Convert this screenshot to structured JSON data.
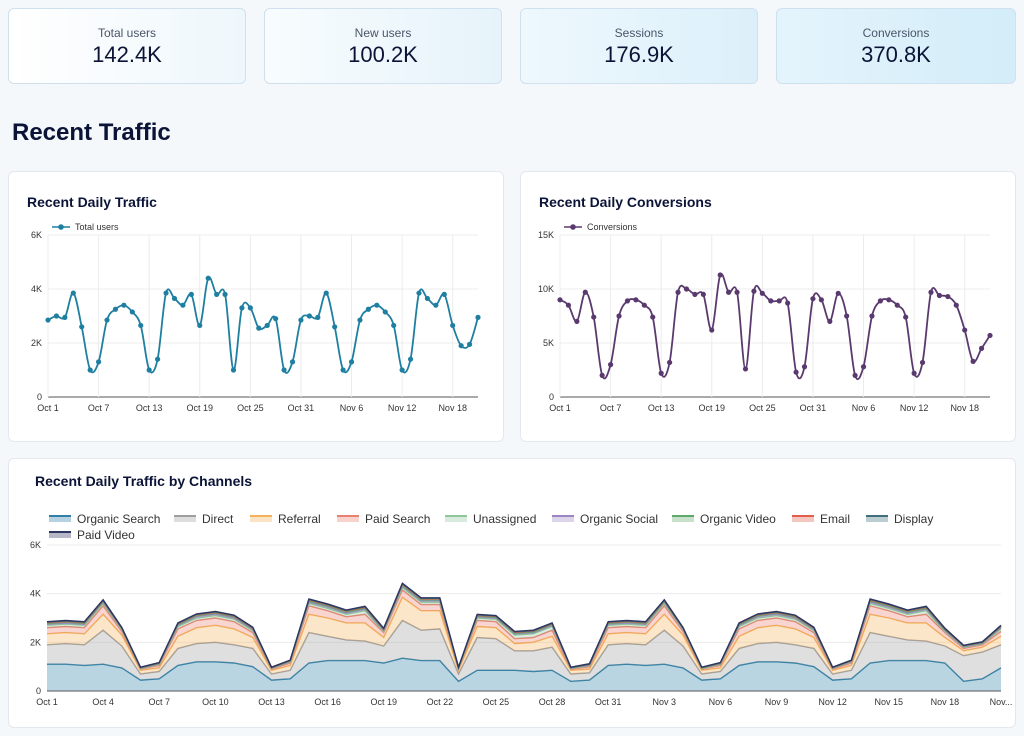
{
  "kpis": [
    {
      "label": "Total users",
      "value": "142.4K"
    },
    {
      "label": "New users",
      "value": "100.2K"
    },
    {
      "label": "Sessions",
      "value": "176.9K"
    },
    {
      "label": "Conversions",
      "value": "370.8K"
    }
  ],
  "section_title": "Recent Traffic",
  "chart_data": [
    {
      "type": "line",
      "title": "Recent Daily Traffic",
      "legend": [
        "Total users"
      ],
      "color": "#1f7fa1",
      "ylim": [
        0,
        6000
      ],
      "yticks": [
        "0",
        "2K",
        "4K",
        "6K"
      ],
      "xlabels": [
        "Oct 1",
        "Oct 7",
        "Oct 13",
        "Oct 19",
        "Oct 25",
        "Oct 31",
        "Nov 6",
        "Nov 12",
        "Nov 18"
      ],
      "xlabel_every": 6,
      "values": [
        2850,
        3000,
        2950,
        3850,
        2600,
        1000,
        1300,
        2850,
        3250,
        3400,
        3150,
        2650,
        1000,
        1400,
        3850,
        3650,
        3400,
        3800,
        2650,
        4400,
        3800,
        3800,
        1000,
        3300,
        3300,
        2550,
        2650,
        2900,
        1000,
        1300,
        2850,
        3000,
        2950,
        3850,
        2600,
        1000,
        1300,
        2850,
        3250,
        3400,
        3150,
        2650,
        1000,
        1400,
        3850,
        3650,
        3400,
        3800,
        2650,
        1900,
        1950,
        2950
      ]
    },
    {
      "type": "line",
      "title": "Recent Daily Conversions",
      "legend": [
        "Conversions"
      ],
      "color": "#5a3a6e",
      "ylim": [
        0,
        15000
      ],
      "yticks": [
        "0",
        "5K",
        "10K",
        "15K"
      ],
      "xlabels": [
        "Oct 1",
        "Oct 7",
        "Oct 13",
        "Oct 19",
        "Oct 25",
        "Oct 31",
        "Nov 6",
        "Nov 12",
        "Nov 18"
      ],
      "xlabel_every": 6,
      "values": [
        9000,
        8500,
        7000,
        9700,
        7400,
        2000,
        3000,
        7500,
        8900,
        9000,
        8500,
        7400,
        2200,
        3200,
        9700,
        10000,
        9500,
        9500,
        6200,
        11300,
        9700,
        9700,
        2600,
        9800,
        9600,
        8900,
        8900,
        8700,
        2300,
        2800,
        9100,
        9000,
        7000,
        9600,
        7500,
        2000,
        2800,
        7500,
        8900,
        9000,
        8500,
        7400,
        2200,
        3200,
        9700,
        9400,
        9300,
        8500,
        6200,
        3300,
        4500,
        5700
      ]
    },
    {
      "type": "area",
      "stacked": true,
      "title": "Recent Daily Traffic by Channels",
      "ylim": [
        0,
        6000
      ],
      "yticks": [
        "0",
        "2K",
        "4K",
        "6K"
      ],
      "xlabels": [
        "Oct 1",
        "Oct 4",
        "Oct 7",
        "Oct 10",
        "Oct 13",
        "Oct 16",
        "Oct 19",
        "Oct 22",
        "Oct 25",
        "Oct 28",
        "Oct 31",
        "Nov 3",
        "Nov 6",
        "Nov 9",
        "Nov 12",
        "Nov 15",
        "Nov 18",
        "Nov..."
      ],
      "xlabel_every": 3,
      "series": [
        {
          "name": "Organic Search",
          "color": "#2f7fa6",
          "values": [
            1100,
            1100,
            1050,
            1100,
            950,
            450,
            500,
            1050,
            1200,
            1200,
            1150,
            1000,
            450,
            500,
            1150,
            1250,
            1250,
            1250,
            1150,
            1350,
            1250,
            1250,
            400,
            850,
            850,
            850,
            800,
            850,
            400,
            450,
            1050,
            1100,
            1050,
            1100,
            950,
            450,
            500,
            1050,
            1200,
            1200,
            1150,
            1000,
            450,
            500,
            1150,
            1250,
            1250,
            1250,
            1150,
            400,
            500,
            950
          ]
        },
        {
          "name": "Direct",
          "color": "#9e9e9e",
          "values": [
            800,
            850,
            850,
            1400,
            900,
            250,
            300,
            700,
            750,
            800,
            750,
            750,
            250,
            350,
            1250,
            1000,
            850,
            800,
            700,
            1550,
            1250,
            1300,
            300,
            1350,
            1300,
            800,
            850,
            950,
            300,
            300,
            850,
            850,
            850,
            1400,
            900,
            250,
            300,
            700,
            750,
            800,
            750,
            750,
            250,
            350,
            1250,
            1000,
            850,
            800,
            700,
            1050,
            1100,
            950
          ]
        },
        {
          "name": "Referral",
          "color": "#f3b25b",
          "values": [
            450,
            450,
            450,
            650,
            450,
            150,
            150,
            500,
            650,
            700,
            650,
            450,
            150,
            200,
            750,
            750,
            700,
            750,
            350,
            950,
            800,
            750,
            150,
            450,
            450,
            300,
            350,
            450,
            150,
            150,
            450,
            450,
            450,
            650,
            450,
            150,
            150,
            500,
            650,
            700,
            650,
            450,
            150,
            200,
            750,
            750,
            700,
            750,
            350,
            200,
            200,
            350
          ]
        },
        {
          "name": "Paid Search",
          "color": "#ea8070",
          "values": [
            250,
            250,
            250,
            350,
            150,
            50,
            100,
            300,
            300,
            300,
            300,
            200,
            50,
            100,
            350,
            300,
            250,
            350,
            200,
            300,
            250,
            250,
            50,
            250,
            250,
            200,
            200,
            250,
            50,
            100,
            250,
            250,
            250,
            350,
            150,
            50,
            100,
            300,
            300,
            300,
            300,
            200,
            50,
            100,
            350,
            300,
            250,
            350,
            200,
            100,
            100,
            200
          ]
        },
        {
          "name": "Unassigned",
          "color": "#8fc79a",
          "values": [
            100,
            100,
            100,
            100,
            60,
            20,
            40,
            100,
            100,
            100,
            100,
            80,
            20,
            40,
            100,
            100,
            100,
            150,
            40,
            100,
            100,
            100,
            20,
            100,
            100,
            150,
            150,
            150,
            20,
            40,
            100,
            100,
            100,
            100,
            60,
            20,
            40,
            100,
            100,
            100,
            100,
            80,
            20,
            40,
            100,
            100,
            100,
            150,
            40,
            40,
            30,
            100
          ]
        },
        {
          "name": "Organic Social",
          "color": "#9b86c3",
          "values": [
            50,
            50,
            50,
            50,
            40,
            20,
            20,
            50,
            60,
            60,
            60,
            50,
            20,
            20,
            60,
            60,
            60,
            60,
            50,
            60,
            60,
            60,
            20,
            50,
            50,
            50,
            50,
            50,
            20,
            20,
            50,
            50,
            50,
            50,
            40,
            20,
            20,
            50,
            60,
            60,
            60,
            50,
            20,
            20,
            60,
            60,
            60,
            60,
            50,
            30,
            30,
            50
          ]
        },
        {
          "name": "Organic Video",
          "color": "#5fa86b",
          "values": [
            30,
            30,
            30,
            30,
            20,
            10,
            20,
            30,
            40,
            40,
            40,
            30,
            10,
            20,
            40,
            40,
            40,
            40,
            30,
            40,
            40,
            40,
            10,
            30,
            30,
            30,
            30,
            30,
            10,
            20,
            30,
            30,
            30,
            30,
            20,
            10,
            20,
            30,
            40,
            40,
            40,
            30,
            10,
            20,
            40,
            40,
            40,
            40,
            30,
            20,
            20,
            30
          ]
        },
        {
          "name": "Email",
          "color": "#e05d4a",
          "values": [
            30,
            30,
            30,
            30,
            20,
            10,
            20,
            30,
            30,
            30,
            30,
            20,
            10,
            20,
            40,
            40,
            40,
            40,
            20,
            40,
            40,
            40,
            10,
            30,
            30,
            30,
            30,
            30,
            10,
            20,
            30,
            30,
            30,
            30,
            20,
            10,
            20,
            30,
            30,
            30,
            30,
            20,
            10,
            20,
            40,
            40,
            40,
            40,
            20,
            20,
            20,
            30
          ]
        },
        {
          "name": "Display",
          "color": "#3f6f7a",
          "values": [
            20,
            20,
            20,
            20,
            10,
            10,
            10,
            20,
            20,
            20,
            20,
            20,
            10,
            10,
            20,
            20,
            20,
            20,
            20,
            20,
            20,
            20,
            10,
            20,
            20,
            20,
            20,
            20,
            10,
            10,
            20,
            20,
            20,
            20,
            10,
            10,
            10,
            20,
            20,
            20,
            20,
            20,
            10,
            10,
            20,
            20,
            20,
            20,
            20,
            10,
            10,
            20
          ]
        },
        {
          "name": "Paid Video",
          "color": "#2d3561",
          "values": [
            20,
            20,
            20,
            20,
            10,
            10,
            10,
            20,
            20,
            20,
            20,
            20,
            10,
            10,
            20,
            20,
            20,
            20,
            20,
            20,
            20,
            20,
            10,
            20,
            20,
            20,
            20,
            20,
            10,
            10,
            20,
            20,
            20,
            20,
            10,
            10,
            10,
            20,
            20,
            20,
            20,
            20,
            10,
            10,
            20,
            20,
            20,
            20,
            20,
            10,
            10,
            20
          ]
        }
      ]
    }
  ]
}
